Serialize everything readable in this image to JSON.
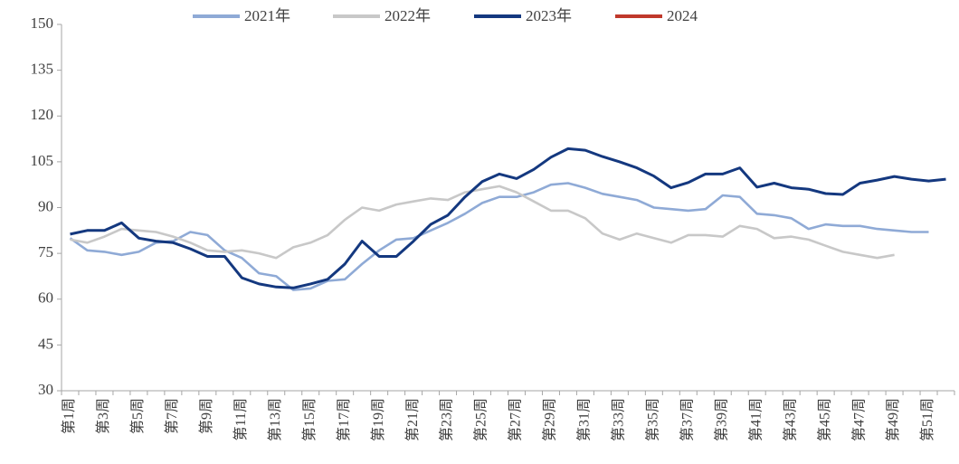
{
  "chart_data": {
    "type": "line",
    "categories": [
      "第1周",
      null,
      "第3周",
      null,
      "第5周",
      null,
      "第7周",
      null,
      "第9周",
      null,
      "第11周",
      null,
      "第13周",
      null,
      "第15周",
      null,
      "第17周",
      null,
      "第19周",
      null,
      "第21周",
      null,
      "第23周",
      null,
      "第25周",
      null,
      "第27周",
      null,
      "第29周",
      null,
      "第31周",
      null,
      "第33周",
      null,
      "第35周",
      null,
      "第37周",
      null,
      "第39周",
      null,
      "第41周",
      null,
      "第43周",
      null,
      "第45周",
      null,
      "第47周",
      null,
      "第49周",
      null,
      "第51周",
      null
    ],
    "series": [
      {
        "name": "2021年",
        "color": "#8faad6",
        "values": [
          80,
          76,
          75.5,
          74.5,
          75.5,
          78.5,
          79,
          82,
          81,
          76,
          73.5,
          68.5,
          67.5,
          63,
          63.5,
          66,
          66.5,
          71.5,
          76,
          79.5,
          80,
          82.5,
          85,
          88,
          91.5,
          93.5,
          93.5,
          95,
          97.5,
          98,
          96.5,
          94.5,
          93.5,
          92.5,
          90,
          89.5,
          89,
          89.5,
          94,
          93.5,
          88,
          87.5,
          86.5,
          83,
          84.5,
          84,
          84,
          83,
          82.5,
          82,
          82,
          null
        ]
      },
      {
        "name": "2022年",
        "color": "#c8c8c8",
        "values": [
          79.5,
          78.5,
          80.5,
          83,
          82.5,
          82,
          80.5,
          78.5,
          76,
          75.5,
          76,
          75,
          73.5,
          77,
          78.5,
          81,
          86,
          90,
          89,
          91,
          92,
          93,
          92.5,
          95,
          96,
          97,
          95,
          92,
          89,
          89,
          86.5,
          81.5,
          79.5,
          81.5,
          80,
          78.5,
          81,
          81,
          80.5,
          84,
          83,
          80,
          80.5,
          79.5,
          77.5,
          75.5,
          74.5,
          73.5,
          74.5,
          null,
          null,
          null
        ]
      },
      {
        "name": "2023年",
        "color": "#14387f",
        "values": [
          81.3,
          82.5,
          82.5,
          85,
          80,
          79,
          78.5,
          76.5,
          74,
          74,
          67,
          65,
          64,
          63.7,
          65,
          66.5,
          71.5,
          79,
          74,
          74,
          79,
          84.5,
          87.5,
          93.5,
          98.5,
          101,
          99.5,
          102.5,
          106.5,
          109.3,
          108.8,
          106.7,
          105,
          103,
          100.3,
          96.5,
          98.2,
          101,
          101,
          103,
          96.7,
          98,
          96.5,
          96,
          94.6,
          94.3,
          98,
          99,
          100.2,
          99.3,
          98.7,
          99.3
        ]
      },
      {
        "name": "2024",
        "color": "#c0392b",
        "values": [
          null,
          null,
          null,
          null,
          null,
          null,
          null,
          null,
          null,
          null,
          null,
          null,
          null,
          null,
          null,
          null,
          null,
          null,
          null,
          null,
          null,
          null,
          null,
          null,
          null,
          null,
          null,
          null,
          null,
          null,
          null,
          null,
          null,
          null,
          null,
          null,
          null,
          null,
          null,
          null,
          null,
          null,
          null,
          null,
          null,
          null,
          null,
          null,
          null,
          null,
          null,
          null
        ]
      }
    ],
    "ylim": [
      30,
      150
    ],
    "yticks": [
      30,
      45,
      60,
      75,
      90,
      105,
      120,
      135,
      150
    ],
    "grid": false,
    "legend": "top"
  }
}
